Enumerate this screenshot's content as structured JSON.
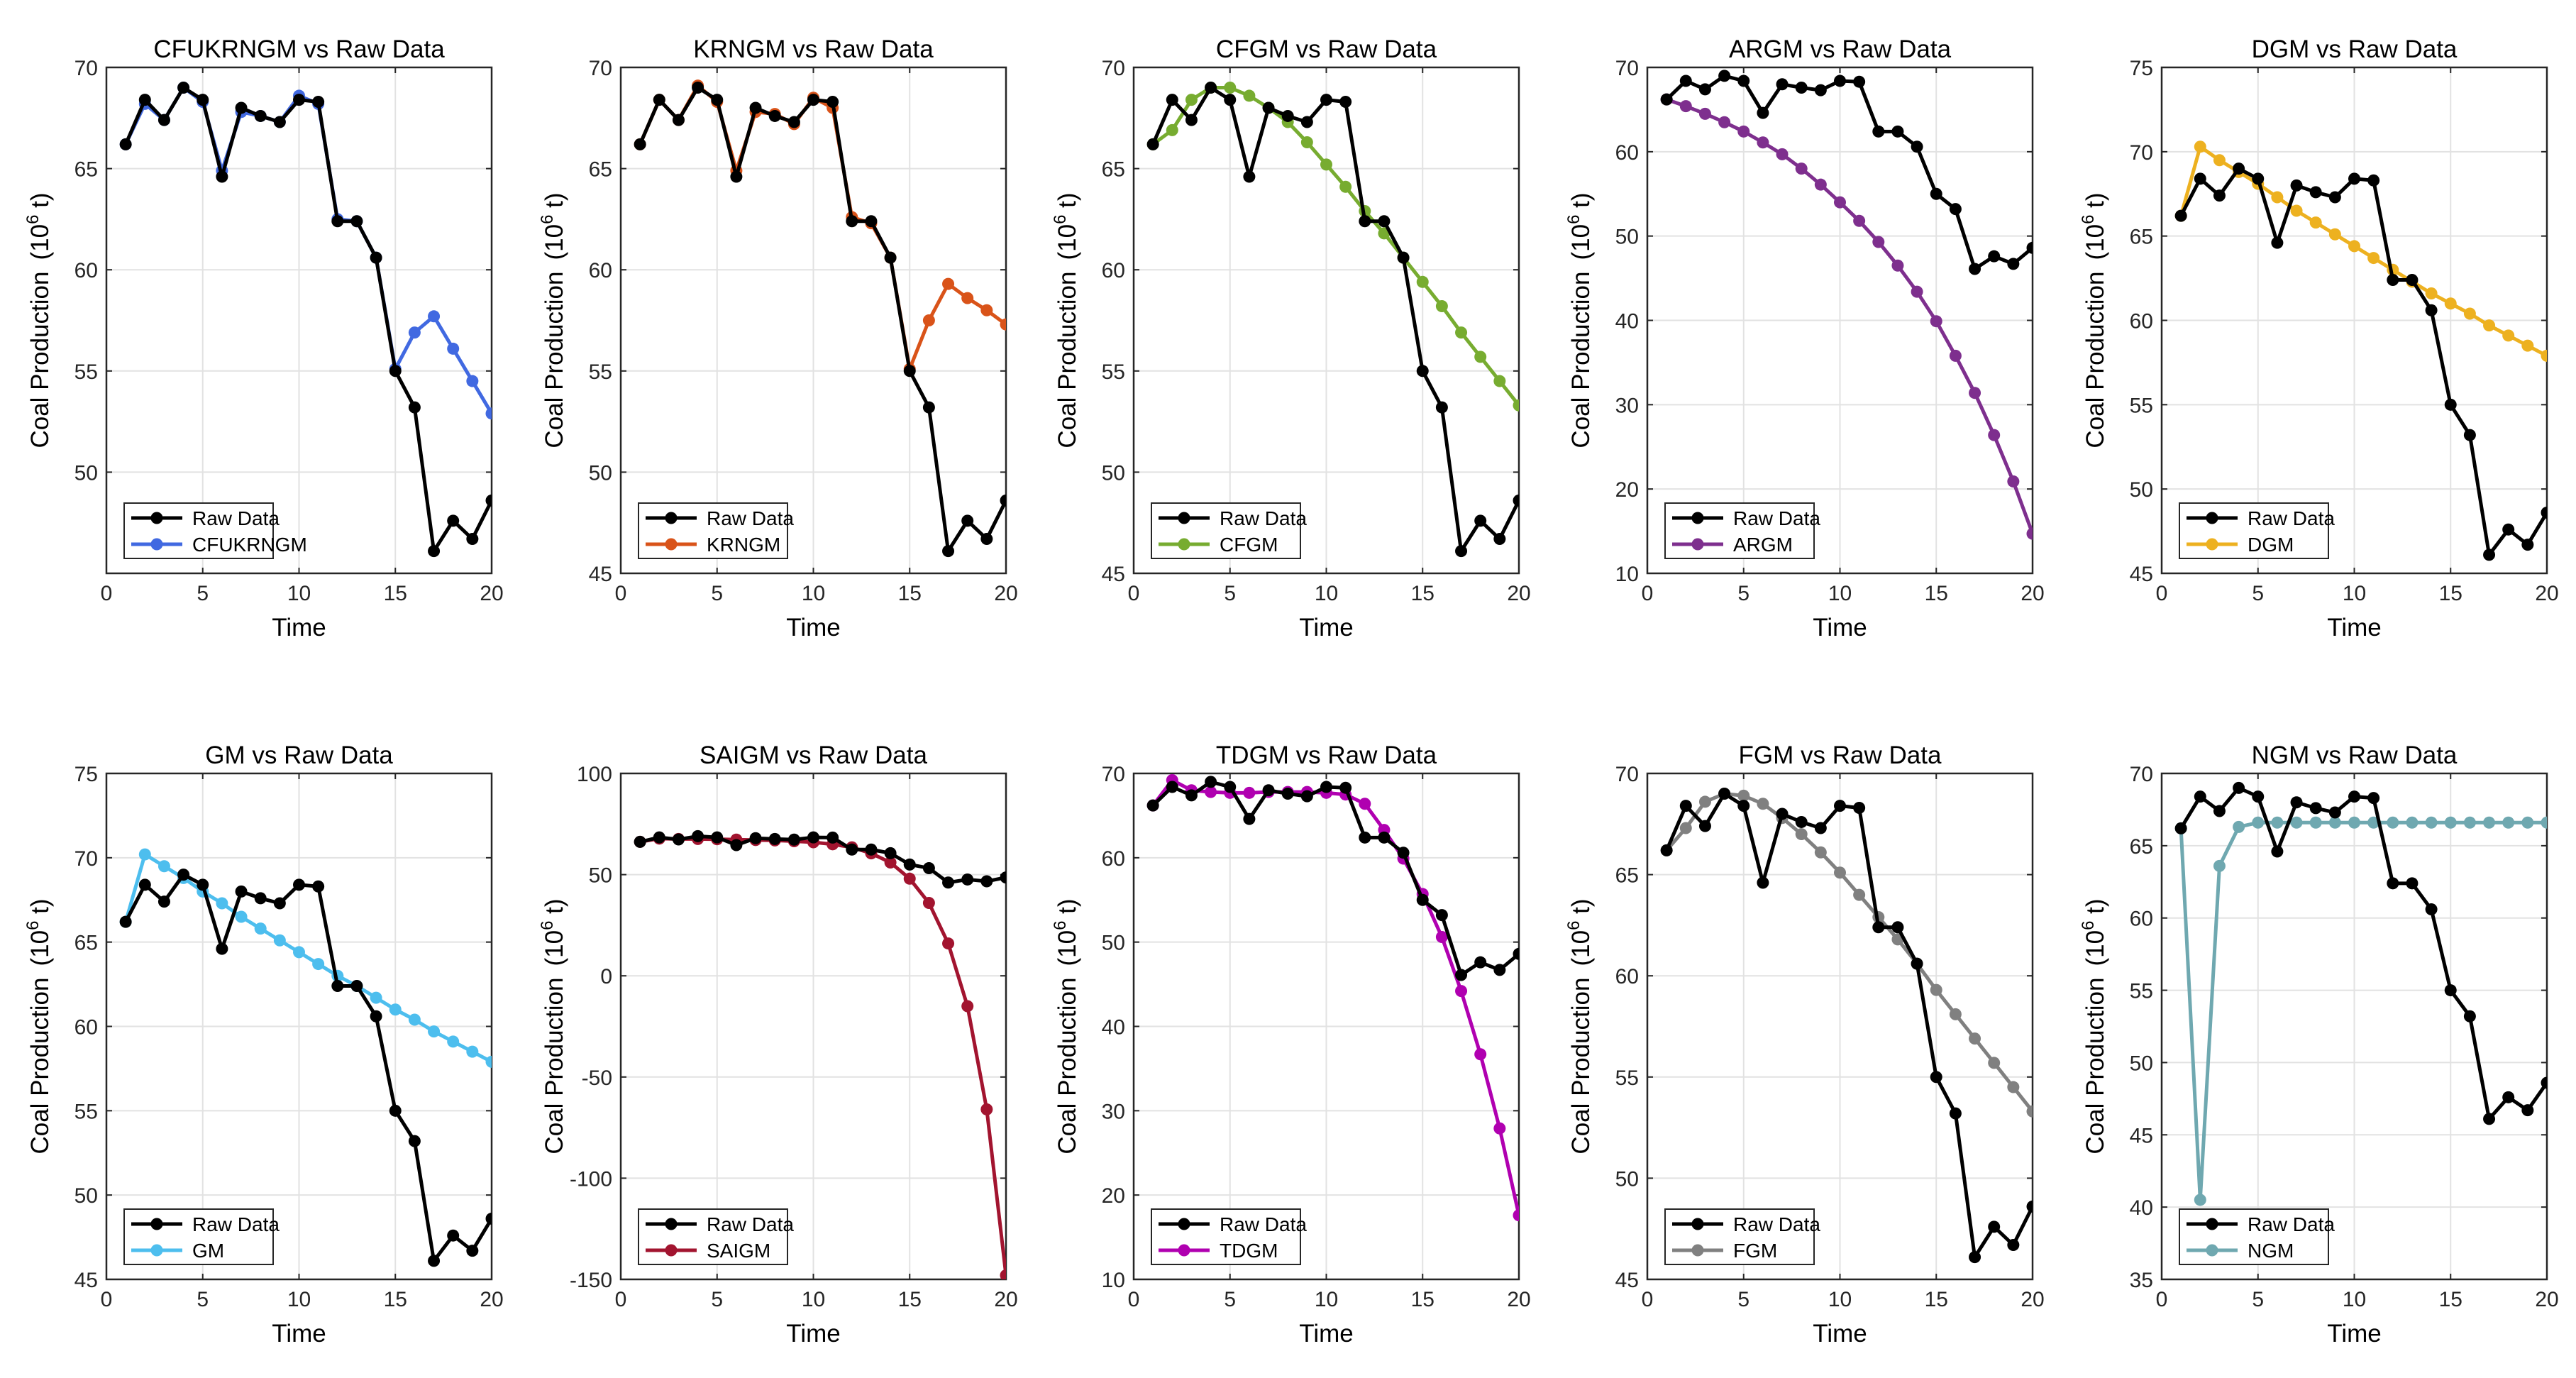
{
  "raw": {
    "name": "Raw Data",
    "color": "#000000",
    "x": [
      1,
      2,
      3,
      4,
      5,
      6,
      7,
      8,
      9,
      10,
      11,
      12,
      13,
      14,
      15,
      16,
      17,
      18,
      19,
      20
    ],
    "values": [
      66.2,
      68.4,
      67.4,
      69.0,
      68.4,
      64.6,
      68.0,
      67.6,
      67.3,
      68.4,
      68.3,
      62.4,
      62.4,
      60.6,
      55.0,
      53.2,
      46.1,
      47.6,
      46.7,
      48.6
    ]
  },
  "chart_data": [
    {
      "type": "line",
      "title": "CFUKRNGM vs Raw Data",
      "xlabel": "Time",
      "ylabel_main": "Coal Production",
      "ylabel_unit_base": "(10",
      "ylabel_unit_exp": "6",
      "ylabel_unit_tail": " t)",
      "xlim": [
        0,
        20
      ],
      "ylim": [
        45,
        70
      ],
      "xticks": [
        0,
        5,
        10,
        15,
        20
      ],
      "yticks": [
        50,
        55,
        60,
        65,
        70
      ],
      "grid": true,
      "legend_position": "bottom-left",
      "series": [
        {
          "name": "Raw Data",
          "ref": "raw"
        },
        {
          "name": "CFUKRNGM",
          "color": "#4169E1",
          "values": [
            66.2,
            68.2,
            67.4,
            69.0,
            68.3,
            64.9,
            67.8,
            67.6,
            67.3,
            68.6,
            68.2,
            62.5,
            62.4,
            60.6,
            55.1,
            56.9,
            57.7,
            56.1,
            54.5,
            52.9
          ]
        }
      ]
    },
    {
      "type": "line",
      "title": "KRNGM vs Raw Data",
      "xlabel": "Time",
      "ylabel_main": "Coal Production",
      "ylabel_unit_base": "(10",
      "ylabel_unit_exp": "6",
      "ylabel_unit_tail": " t)",
      "xlim": [
        0,
        20
      ],
      "ylim": [
        45,
        70
      ],
      "xticks": [
        0,
        5,
        10,
        15,
        20
      ],
      "yticks": [
        45,
        50,
        55,
        60,
        65,
        70
      ],
      "grid": true,
      "legend_position": "bottom-left",
      "series": [
        {
          "name": "Raw Data",
          "ref": "raw"
        },
        {
          "name": "KRNGM",
          "color": "#D95319",
          "values": [
            66.2,
            68.4,
            67.4,
            69.1,
            68.3,
            64.9,
            67.8,
            67.7,
            67.2,
            68.5,
            68.0,
            62.6,
            62.3,
            60.6,
            55.1,
            57.5,
            59.3,
            58.6,
            58.0,
            57.3
          ]
        }
      ]
    },
    {
      "type": "line",
      "title": "CFGM vs Raw Data",
      "xlabel": "Time",
      "ylabel_main": "Coal Production",
      "ylabel_unit_base": "(10",
      "ylabel_unit_exp": "6",
      "ylabel_unit_tail": " t)",
      "xlim": [
        0,
        20
      ],
      "ylim": [
        45,
        70
      ],
      "xticks": [
        0,
        5,
        10,
        15,
        20
      ],
      "yticks": [
        45,
        50,
        55,
        60,
        65,
        70
      ],
      "grid": true,
      "legend_position": "bottom-left",
      "series": [
        {
          "name": "Raw Data",
          "ref": "raw"
        },
        {
          "name": "CFGM",
          "color": "#77AC30",
          "values": [
            66.2,
            66.9,
            68.4,
            69.0,
            69.0,
            68.6,
            68.0,
            67.3,
            66.3,
            65.2,
            64.1,
            62.9,
            61.8,
            60.6,
            59.4,
            58.2,
            56.9,
            55.7,
            54.5,
            53.3
          ]
        }
      ]
    },
    {
      "type": "line",
      "title": "ARGM vs Raw Data",
      "xlabel": "Time",
      "ylabel_main": "Coal Production",
      "ylabel_unit_base": "(10",
      "ylabel_unit_exp": "6",
      "ylabel_unit_tail": " t)",
      "xlim": [
        0,
        20
      ],
      "ylim": [
        10,
        70
      ],
      "xticks": [
        0,
        5,
        10,
        15,
        20
      ],
      "yticks": [
        10,
        20,
        30,
        40,
        50,
        60,
        70
      ],
      "grid": true,
      "legend_position": "bottom-left",
      "series": [
        {
          "name": "Raw Data",
          "ref": "raw"
        },
        {
          "name": "ARGM",
          "color": "#7E2F8E",
          "values": [
            66.2,
            65.4,
            64.5,
            63.5,
            62.4,
            61.1,
            59.7,
            58.0,
            56.1,
            54.0,
            51.8,
            49.3,
            46.5,
            43.4,
            39.9,
            35.8,
            31.4,
            26.4,
            20.9,
            14.7
          ]
        }
      ]
    },
    {
      "type": "line",
      "title": "DGM vs Raw Data",
      "xlabel": "Time",
      "ylabel_main": "Coal Production",
      "ylabel_unit_base": "(10",
      "ylabel_unit_exp": "6",
      "ylabel_unit_tail": " t)",
      "xlim": [
        0,
        20
      ],
      "ylim": [
        45,
        75
      ],
      "xticks": [
        0,
        5,
        10,
        15,
        20
      ],
      "yticks": [
        45,
        50,
        55,
        60,
        65,
        70,
        75
      ],
      "grid": true,
      "legend_position": "bottom-left",
      "series": [
        {
          "name": "Raw Data",
          "ref": "raw"
        },
        {
          "name": "DGM",
          "color": "#EDB120",
          "values": [
            66.2,
            70.3,
            69.5,
            68.8,
            68.1,
            67.3,
            66.5,
            65.8,
            65.1,
            64.4,
            63.7,
            63.0,
            62.3,
            61.6,
            61.0,
            60.4,
            59.7,
            59.1,
            58.5,
            57.9
          ]
        }
      ]
    },
    {
      "type": "line",
      "title": "GM vs Raw Data",
      "xlabel": "Time",
      "ylabel_main": "Coal Production",
      "ylabel_unit_base": "(10",
      "ylabel_unit_exp": "6",
      "ylabel_unit_tail": " t)",
      "xlim": [
        0,
        20
      ],
      "ylim": [
        45,
        75
      ],
      "xticks": [
        0,
        5,
        10,
        15,
        20
      ],
      "yticks": [
        45,
        50,
        55,
        60,
        65,
        70,
        75
      ],
      "grid": true,
      "legend_position": "bottom-left",
      "series": [
        {
          "name": "Raw Data",
          "ref": "raw"
        },
        {
          "name": "GM",
          "color": "#4DBEEE",
          "values": [
            66.2,
            70.2,
            69.5,
            68.8,
            68.0,
            67.3,
            66.5,
            65.8,
            65.1,
            64.4,
            63.7,
            63.0,
            62.4,
            61.7,
            61.0,
            60.4,
            59.7,
            59.1,
            58.5,
            57.9
          ]
        }
      ]
    },
    {
      "type": "line",
      "title": "SAIGM vs Raw Data",
      "xlabel": "Time",
      "ylabel_main": "Coal Production",
      "ylabel_unit_base": "(10",
      "ylabel_unit_exp": "6",
      "ylabel_unit_tail": " t)",
      "xlim": [
        0,
        20
      ],
      "ylim": [
        -150,
        100
      ],
      "xticks": [
        0,
        5,
        10,
        15,
        20
      ],
      "yticks": [
        -150,
        -100,
        -50,
        0,
        50,
        100
      ],
      "grid": true,
      "legend_position": "bottom-left",
      "series": [
        {
          "name": "Raw Data",
          "ref": "raw"
        },
        {
          "name": "SAIGM",
          "color": "#A2142F",
          "values": [
            66.2,
            67.8,
            67.6,
            67.6,
            67.5,
            67.3,
            67.1,
            66.9,
            66.5,
            66.0,
            65.0,
            63.5,
            60.5,
            56.0,
            48.0,
            36.0,
            16.0,
            -15.0,
            -66.0,
            -148.0
          ]
        }
      ]
    },
    {
      "type": "line",
      "title": "TDGM vs Raw Data",
      "xlabel": "Time",
      "ylabel_main": "Coal Production",
      "ylabel_unit_base": "(10",
      "ylabel_unit_exp": "6",
      "ylabel_unit_tail": " t)",
      "xlim": [
        0,
        20
      ],
      "ylim": [
        10,
        70
      ],
      "xticks": [
        0,
        5,
        10,
        15,
        20
      ],
      "yticks": [
        10,
        20,
        30,
        40,
        50,
        60,
        70
      ],
      "grid": true,
      "legend_position": "bottom-left",
      "series": [
        {
          "name": "Raw Data",
          "ref": "raw"
        },
        {
          "name": "TDGM",
          "color": "#B000B0",
          "values": [
            66.2,
            69.2,
            68.0,
            67.8,
            67.7,
            67.7,
            67.8,
            67.8,
            67.8,
            67.7,
            67.5,
            66.4,
            63.3,
            59.9,
            55.7,
            50.6,
            44.2,
            36.7,
            27.9,
            17.6
          ]
        }
      ]
    },
    {
      "type": "line",
      "title": "FGM vs Raw Data",
      "xlabel": "Time",
      "ylabel_main": "Coal Production",
      "ylabel_unit_base": "(10",
      "ylabel_unit_exp": "6",
      "ylabel_unit_tail": " t)",
      "xlim": [
        0,
        20
      ],
      "ylim": [
        45,
        70
      ],
      "xticks": [
        0,
        5,
        10,
        15,
        20
      ],
      "yticks": [
        45,
        50,
        55,
        60,
        65,
        70
      ],
      "grid": true,
      "legend_position": "bottom-left",
      "series": [
        {
          "name": "Raw Data",
          "ref": "raw"
        },
        {
          "name": "FGM",
          "color": "#808080",
          "values": [
            66.2,
            67.3,
            68.6,
            69.0,
            68.9,
            68.5,
            67.8,
            67.0,
            66.1,
            65.1,
            64.0,
            62.9,
            61.8,
            60.6,
            59.3,
            58.1,
            56.9,
            55.7,
            54.5,
            53.3
          ]
        }
      ]
    },
    {
      "type": "line",
      "title": "NGM vs Raw Data",
      "xlabel": "Time",
      "ylabel_main": "Coal Production",
      "ylabel_unit_base": "(10",
      "ylabel_unit_exp": "6",
      "ylabel_unit_tail": " t)",
      "xlim": [
        0,
        20
      ],
      "ylim": [
        35,
        70
      ],
      "xticks": [
        0,
        5,
        10,
        15,
        20
      ],
      "yticks": [
        35,
        40,
        45,
        50,
        55,
        60,
        65,
        70
      ],
      "grid": true,
      "legend_position": "bottom-left",
      "series": [
        {
          "name": "Raw Data",
          "ref": "raw"
        },
        {
          "name": "NGM",
          "color": "#6FA8B0",
          "values": [
            66.2,
            40.5,
            63.6,
            66.3,
            66.6,
            66.6,
            66.6,
            66.6,
            66.6,
            66.6,
            66.6,
            66.6,
            66.6,
            66.6,
            66.6,
            66.6,
            66.6,
            66.6,
            66.6,
            66.6
          ]
        }
      ]
    }
  ]
}
